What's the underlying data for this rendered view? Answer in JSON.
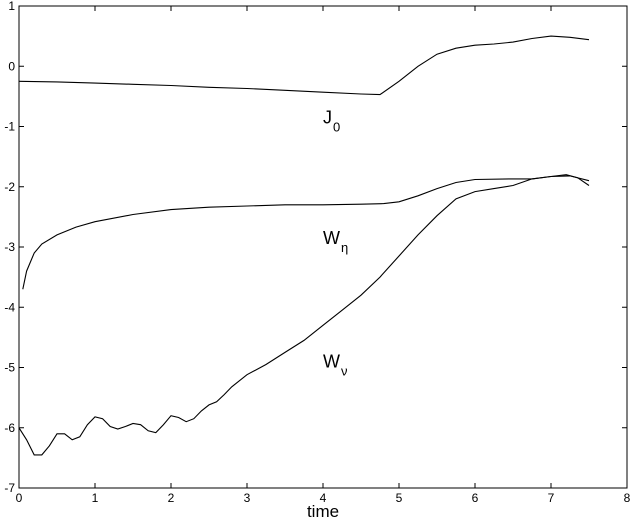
{
  "chart_data": {
    "type": "line",
    "title": "",
    "xlabel": "time",
    "ylabel": "",
    "xlim": [
      0,
      8
    ],
    "ylim": [
      -7,
      1
    ],
    "xticks": [
      0,
      1,
      2,
      3,
      4,
      5,
      6,
      7,
      8
    ],
    "yticks": [
      1,
      0,
      -1,
      -2,
      -3,
      -4,
      -5,
      -6,
      -7
    ],
    "grid": false,
    "legend": "none",
    "series": [
      {
        "name": "J",
        "subscript": "0",
        "label_at": [
          4.0,
          -0.95
        ],
        "x": [
          0,
          0.5,
          1,
          1.5,
          2,
          2.5,
          3,
          3.5,
          4,
          4.5,
          4.75,
          5,
          5.25,
          5.5,
          5.75,
          6,
          6.25,
          6.5,
          6.75,
          7,
          7.25,
          7.5
        ],
        "y": [
          -0.25,
          -0.26,
          -0.28,
          -0.3,
          -0.32,
          -0.35,
          -0.37,
          -0.4,
          -0.43,
          -0.46,
          -0.47,
          -0.25,
          0.0,
          0.2,
          0.3,
          0.35,
          0.37,
          0.4,
          0.46,
          0.5,
          0.48,
          0.44
        ]
      },
      {
        "name": "W",
        "subscript": "η",
        "label_at": [
          4.0,
          -2.95
        ],
        "x": [
          0.05,
          0.1,
          0.2,
          0.3,
          0.5,
          0.75,
          1,
          1.5,
          2,
          2.5,
          3,
          3.5,
          4,
          4.5,
          4.8,
          5,
          5.25,
          5.5,
          5.75,
          6,
          6.5,
          6.75,
          7,
          7.25,
          7.5
        ],
        "y": [
          -3.7,
          -3.4,
          -3.1,
          -2.95,
          -2.8,
          -2.67,
          -2.58,
          -2.46,
          -2.38,
          -2.34,
          -2.32,
          -2.3,
          -2.3,
          -2.29,
          -2.28,
          -2.25,
          -2.15,
          -2.03,
          -1.93,
          -1.88,
          -1.87,
          -1.87,
          -1.83,
          -1.82,
          -1.9
        ]
      },
      {
        "name": "W",
        "subscript": "ν",
        "label_at": [
          4.0,
          -5.0
        ],
        "x": [
          0,
          0.1,
          0.2,
          0.3,
          0.4,
          0.5,
          0.6,
          0.7,
          0.8,
          0.9,
          1.0,
          1.1,
          1.2,
          1.3,
          1.4,
          1.5,
          1.6,
          1.7,
          1.8,
          1.9,
          2.0,
          2.1,
          2.2,
          2.3,
          2.4,
          2.5,
          2.6,
          2.7,
          2.8,
          3.0,
          3.25,
          3.5,
          3.75,
          4.0,
          4.25,
          4.5,
          4.75,
          5.0,
          5.25,
          5.5,
          5.75,
          6.0,
          6.25,
          6.5,
          6.75,
          7.0,
          7.2,
          7.35,
          7.5
        ],
        "y": [
          -6.0,
          -6.2,
          -6.45,
          -6.45,
          -6.3,
          -6.1,
          -6.1,
          -6.2,
          -6.15,
          -5.95,
          -5.82,
          -5.85,
          -5.98,
          -6.02,
          -5.98,
          -5.93,
          -5.95,
          -6.05,
          -6.08,
          -5.95,
          -5.8,
          -5.83,
          -5.9,
          -5.85,
          -5.72,
          -5.62,
          -5.57,
          -5.45,
          -5.32,
          -5.12,
          -4.95,
          -4.75,
          -4.55,
          -4.3,
          -4.05,
          -3.8,
          -3.5,
          -3.15,
          -2.8,
          -2.48,
          -2.2,
          -2.08,
          -2.03,
          -1.98,
          -1.87,
          -1.83,
          -1.8,
          -1.85,
          -1.98
        ]
      }
    ]
  }
}
